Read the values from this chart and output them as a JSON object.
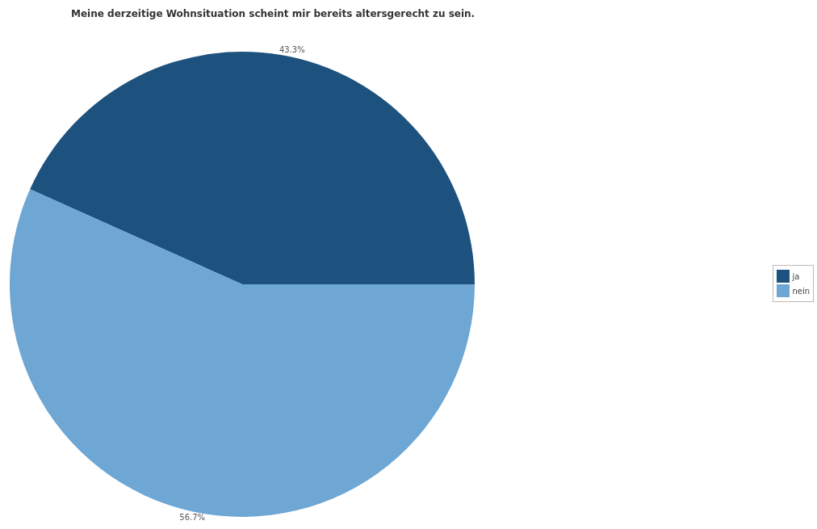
{
  "chart_data": {
    "type": "pie",
    "title": "Meine derzeitige Wohnsituation scheint mir bereits altersgerecht zu sein.",
    "categories": [
      "ja",
      "nein"
    ],
    "values": [
      43.3,
      56.7
    ],
    "colors": [
      "#1d527f",
      "#6ea6d4"
    ],
    "value_labels": [
      "43.3%",
      "56.7%"
    ],
    "legend": "right"
  }
}
